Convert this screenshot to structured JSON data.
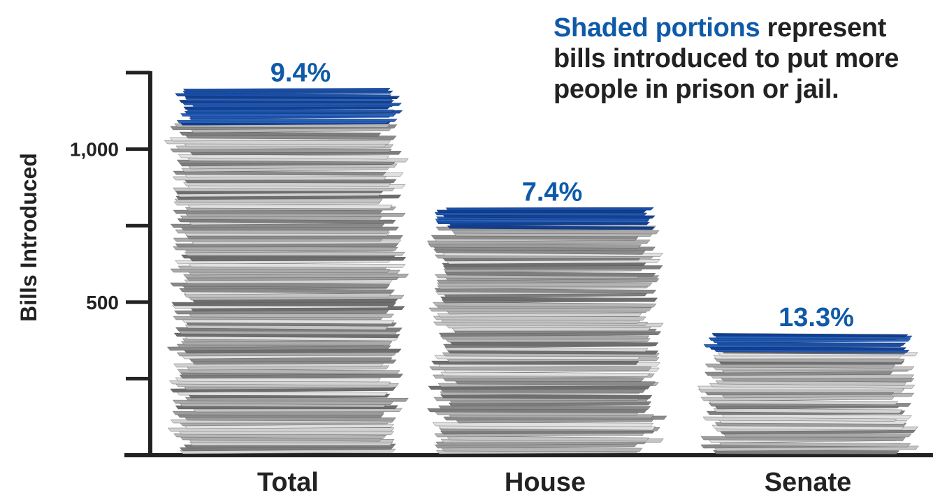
{
  "annotation": {
    "highlight": "Shaded portions",
    "rest": " represent bills introduced to put more people in prison or jail."
  },
  "colors": {
    "accent": "#0f5aa8",
    "shaded": "#1a4fa6",
    "axis": "#222222"
  },
  "chart_data": {
    "type": "bar",
    "categories": [
      "Total",
      "House",
      "Senate"
    ],
    "values": [
      1190,
      800,
      390
    ],
    "shaded_percent_labels": [
      "9.4%",
      "7.4%",
      "13.3%"
    ],
    "shaded_fraction": [
      0.094,
      0.074,
      0.133
    ],
    "ylabel": "Bills Introduced",
    "ylim": [
      0,
      1250
    ],
    "major_ticks": [
      500,
      1000
    ],
    "major_tick_labels": [
      "500",
      "1,000"
    ],
    "minor_ticks": [
      250,
      750,
      1250
    ],
    "grid": false,
    "legend": "none"
  }
}
